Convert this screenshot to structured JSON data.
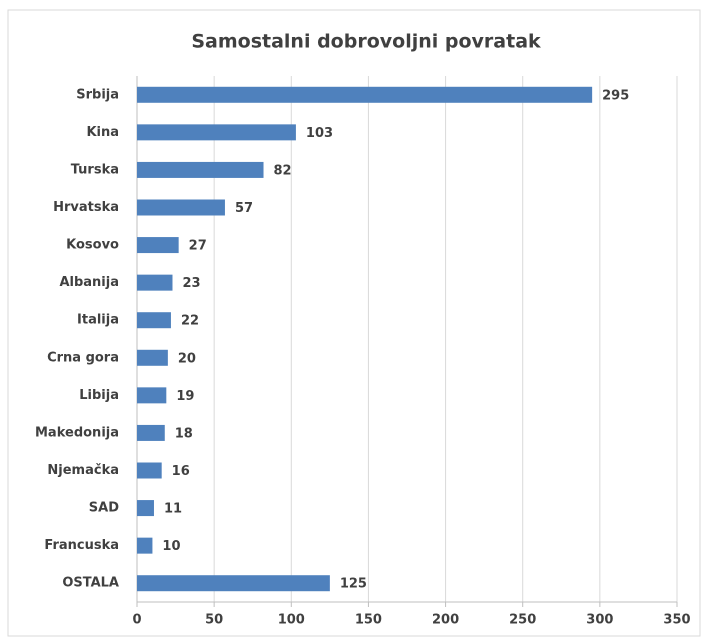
{
  "chart_data": {
    "type": "bar",
    "orientation": "horizontal",
    "title": "Samostalni dobrovoljni povratak",
    "categories": [
      "Srbija",
      "Kina",
      "Turska",
      "Hrvatska",
      "Kosovo",
      "Albanija",
      "Italija",
      "Crna gora",
      "Libija",
      "Makedonija",
      "Njemačka",
      "SAD",
      "Francuska",
      "OSTALA"
    ],
    "values": [
      295,
      103,
      82,
      57,
      27,
      23,
      22,
      20,
      19,
      18,
      16,
      11,
      10,
      125
    ],
    "color": "#4f81bd",
    "xlim": [
      0,
      350
    ],
    "xticks": [
      0,
      50,
      100,
      150,
      200,
      250,
      300,
      350
    ],
    "grid": true
  }
}
